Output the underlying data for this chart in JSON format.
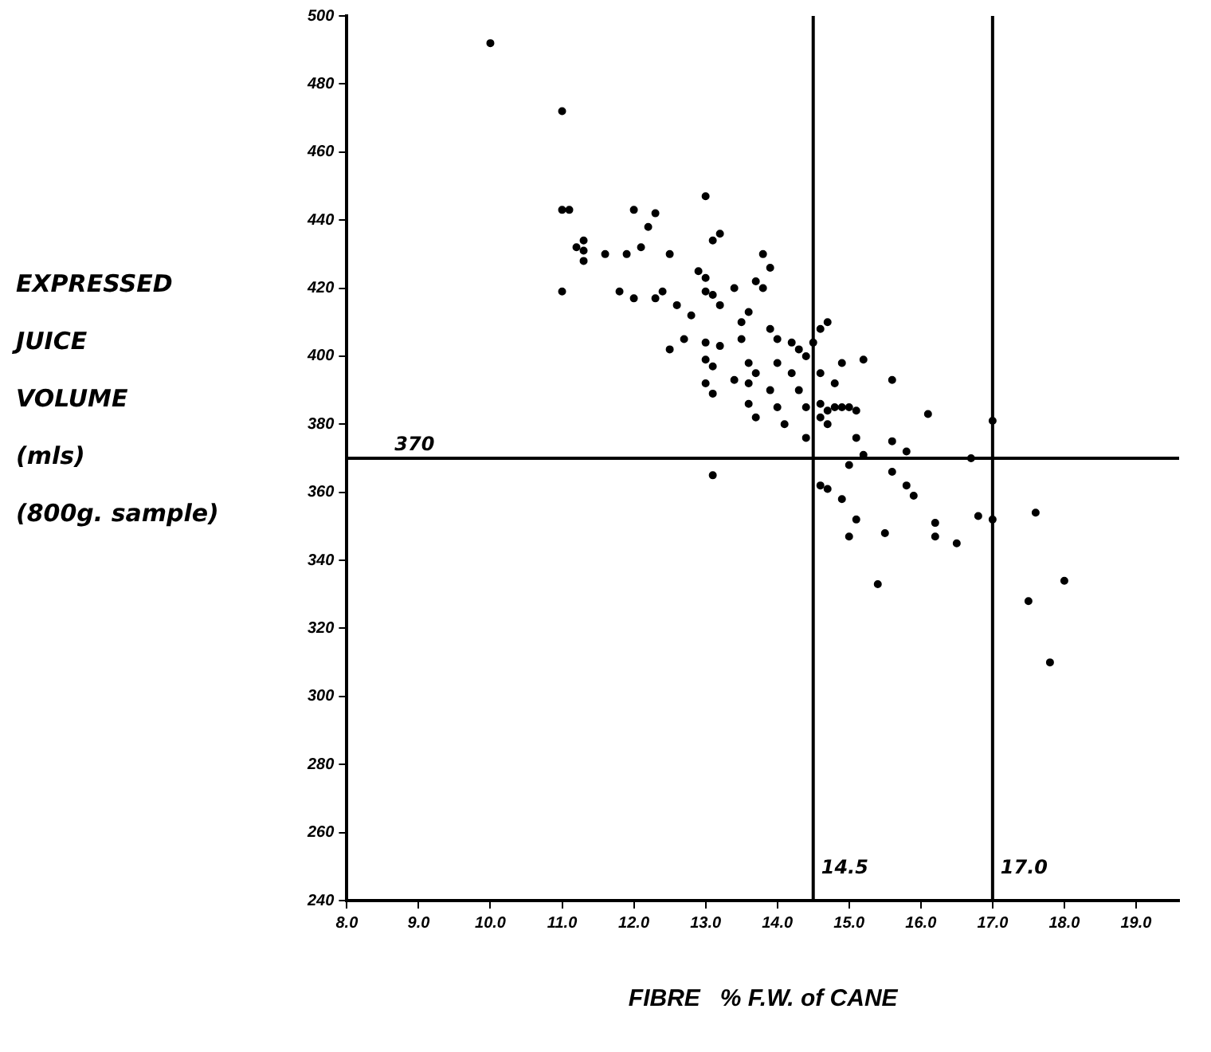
{
  "chart_data": {
    "type": "scatter",
    "xlabel": "FIBRE   % F.W. of CANE",
    "ylabel": "EXPRESSED\nJUICE\nVOLUME\n(mls)\n(800g. sample)",
    "xlim": [
      8,
      19.6
    ],
    "ylim": [
      240,
      500
    ],
    "xticks": [
      {
        "value": 8,
        "label": "8.0"
      },
      {
        "value": 9,
        "label": "9.0"
      },
      {
        "value": 10,
        "label": "10.0"
      },
      {
        "value": 11,
        "label": "11.0"
      },
      {
        "value": 12,
        "label": "12.0"
      },
      {
        "value": 13,
        "label": "13.0"
      },
      {
        "value": 14,
        "label": "14.0"
      },
      {
        "value": 15,
        "label": "15.0"
      },
      {
        "value": 16,
        "label": "16.0"
      },
      {
        "value": 17,
        "label": "17.0"
      },
      {
        "value": 18,
        "label": "18.0"
      },
      {
        "value": 19,
        "label": "19.0"
      }
    ],
    "yticks": [
      240,
      260,
      280,
      300,
      320,
      340,
      360,
      380,
      400,
      420,
      440,
      460,
      480,
      500
    ],
    "grid": false,
    "legend": false,
    "marker": "circle",
    "ref_lines": [
      {
        "axis": "y",
        "value": 370,
        "label": "370",
        "color": "#000000"
      },
      {
        "axis": "x",
        "value": 14.5,
        "label": "14.5",
        "color": "#000000"
      },
      {
        "axis": "x",
        "value": 17.0,
        "label": "17.0",
        "color": "#000000"
      }
    ],
    "series": [
      {
        "color": "#000000",
        "x": [
          10.0,
          11.0,
          11.0,
          11.1,
          11.0,
          11.3,
          11.3,
          11.2,
          11.3,
          11.6,
          11.8,
          12.0,
          12.3,
          12.2,
          12.1,
          11.9,
          12.0,
          12.3,
          12.5,
          12.4,
          12.6,
          12.5,
          12.7,
          12.8,
          13.0,
          12.9,
          13.0,
          13.1,
          13.2,
          13.0,
          13.1,
          13.2,
          13.0,
          13.0,
          13.1,
          13.2,
          13.0,
          13.1,
          13.1,
          13.4,
          13.6,
          13.5,
          13.7,
          13.5,
          13.6,
          13.7,
          13.4,
          13.6,
          13.6,
          13.7,
          13.8,
          13.9,
          13.8,
          13.9,
          14.0,
          14.0,
          13.9,
          14.0,
          14.1,
          14.2,
          14.3,
          14.2,
          14.4,
          14.3,
          14.4,
          14.4,
          14.5,
          14.6,
          14.7,
          14.6,
          14.8,
          14.9,
          14.6,
          14.7,
          14.8,
          14.9,
          15.0,
          14.6,
          14.7,
          15.2,
          15.1,
          15.1,
          15.2,
          14.6,
          14.7,
          14.9,
          15.1,
          15.0,
          15.0,
          15.5,
          15.4,
          15.6,
          15.6,
          15.8,
          15.6,
          15.8,
          15.9,
          16.1,
          16.2,
          16.2,
          16.5,
          16.7,
          16.8,
          17.0,
          17.0,
          17.6,
          17.5,
          18.0,
          17.8
        ],
        "values": [
          492,
          472,
          443,
          443,
          419,
          434,
          431,
          432,
          428,
          430,
          419,
          443,
          442,
          438,
          432,
          430,
          417,
          417,
          430,
          419,
          415,
          402,
          405,
          412,
          447,
          425,
          423,
          434,
          436,
          419,
          418,
          415,
          404,
          399,
          397,
          403,
          392,
          389,
          365,
          420,
          413,
          410,
          422,
          405,
          398,
          395,
          393,
          392,
          386,
          382,
          430,
          426,
          420,
          408,
          405,
          398,
          390,
          385,
          380,
          404,
          402,
          395,
          400,
          390,
          385,
          376,
          404,
          408,
          410,
          395,
          392,
          398,
          386,
          384,
          385,
          385,
          385,
          382,
          380,
          399,
          384,
          376,
          371,
          362,
          361,
          358,
          352,
          347,
          368,
          348,
          333,
          393,
          375,
          372,
          366,
          362,
          359,
          383,
          351,
          347,
          345,
          370,
          353,
          352,
          381,
          354,
          328,
          334,
          310
        ]
      }
    ]
  }
}
